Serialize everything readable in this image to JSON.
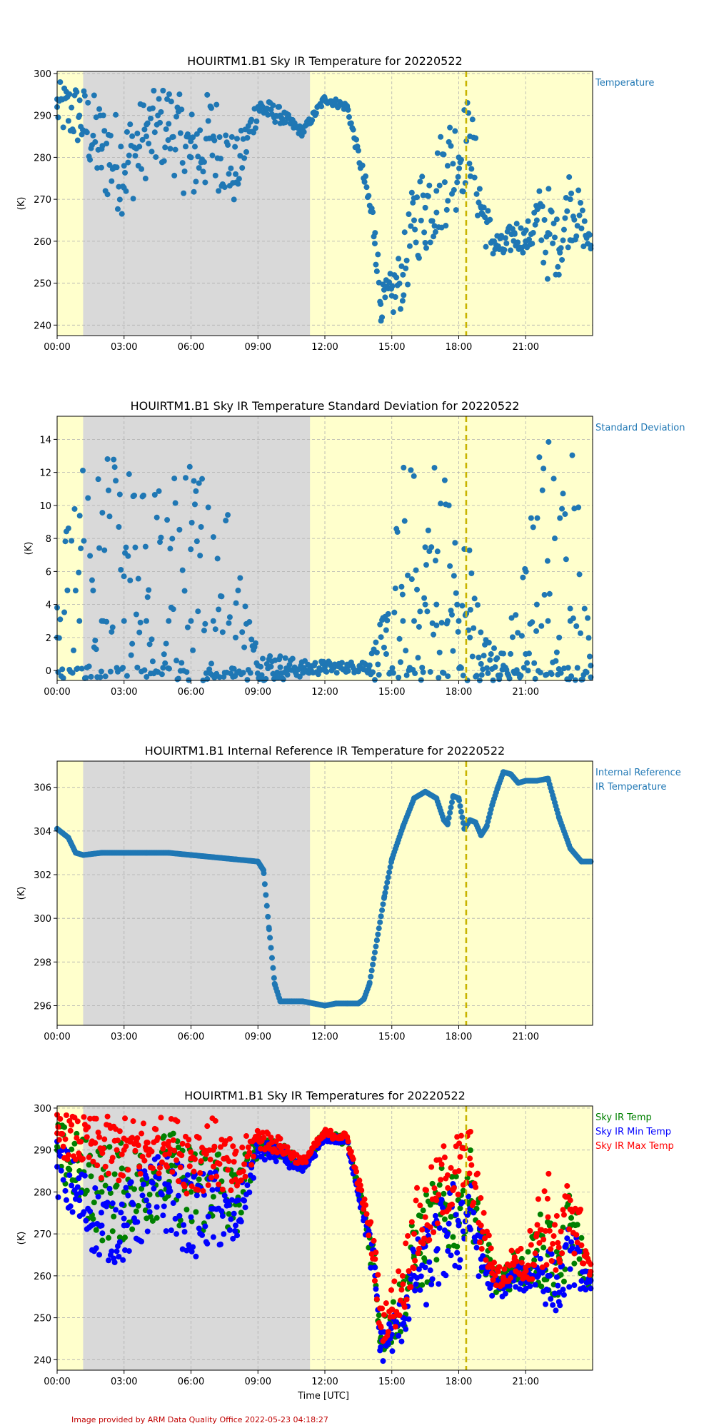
{
  "colors": {
    "night": "#d9d9d9",
    "day": "#ffffcc",
    "single_series": "#1f77b4",
    "legend_label": "#1f77b4",
    "sky_ir_temp": "#008000",
    "sky_ir_min_temp": "#0000ff",
    "sky_ir_max_temp": "#ff0000",
    "marker_line": "#c8b400",
    "grid": "#b0b0b0",
    "footer": "#c00000"
  },
  "xlabel": "Time [UTC]",
  "footer": "Image provided by ARM Data Quality Office 2022-05-23 04:18:27",
  "chart_data": [
    {
      "type": "scatter",
      "title": "HOUIRTM1.B1 Sky IR Temperature for 20220522",
      "ylabel": "(K)",
      "legend": [
        "Temperature"
      ],
      "legend_placement": "right",
      "xlim": [
        "00:00",
        "24:00"
      ],
      "ylim": [
        237.5,
        300.5
      ],
      "grid": true,
      "x_ticks": [
        "00:00",
        "03:00",
        "06:00",
        "09:00",
        "12:00",
        "15:00",
        "18:00",
        "21:00"
      ],
      "y_ticks": [
        240,
        250,
        260,
        270,
        280,
        290,
        300
      ],
      "shaded_regions": [
        {
          "from": "01:10",
          "to": "11:20",
          "label": "night"
        }
      ],
      "marker_time": "18:20",
      "series": [
        {
          "name": "Temperature",
          "x": [
            "00:00",
            "01:00",
            "02:00",
            "03:00",
            "04:00",
            "05:00",
            "06:00",
            "07:00",
            "08:00",
            "09:00",
            "10:00",
            "11:00",
            "12:00",
            "13:00",
            "13:45",
            "14:15",
            "14:30",
            "15:00",
            "15:30",
            "16:00",
            "16:30",
            "17:00",
            "17:30",
            "18:00",
            "18:30",
            "19:00",
            "19:30",
            "20:00",
            "20:30",
            "21:00",
            "21:30",
            "22:00",
            "22:30",
            "23:00",
            "23:55"
          ],
          "values": [
            292,
            290,
            282,
            278,
            285,
            288,
            280,
            285,
            276,
            292,
            290,
            286,
            294,
            292,
            275,
            262,
            245,
            247,
            252,
            265,
            268,
            272,
            278,
            280,
            285,
            268,
            260,
            258,
            262,
            260,
            265,
            262,
            258,
            270,
            259
          ],
          "spread": [
            6,
            8,
            12,
            12,
            10,
            10,
            12,
            12,
            8,
            3,
            2,
            1,
            1,
            1,
            2,
            6,
            4,
            6,
            8,
            10,
            12,
            12,
            14,
            12,
            10,
            8,
            4,
            3,
            4,
            3,
            8,
            12,
            6,
            10,
            2
          ]
        }
      ]
    },
    {
      "type": "scatter",
      "title": "HOUIRTM1.B1 Sky IR Temperature Standard Deviation for 20220522",
      "ylabel": "(K)",
      "legend": [
        "Standard Deviation"
      ],
      "legend_placement": "right",
      "xlim": [
        "00:00",
        "24:00"
      ],
      "ylim": [
        -0.6,
        15.4
      ],
      "grid": true,
      "x_ticks": [
        "00:00",
        "03:00",
        "06:00",
        "09:00",
        "12:00",
        "15:00",
        "18:00",
        "21:00"
      ],
      "y_ticks": [
        0,
        2,
        4,
        6,
        8,
        10,
        12,
        14
      ],
      "shaded_regions": [
        {
          "from": "01:10",
          "to": "11:20",
          "label": "night"
        }
      ],
      "marker_time": "18:20",
      "series": [
        {
          "name": "Standard Deviation",
          "x": [
            "00:00",
            "01:00",
            "02:00",
            "03:00",
            "04:00",
            "05:00",
            "06:00",
            "07:00",
            "08:00",
            "09:00",
            "10:00",
            "11:00",
            "12:00",
            "13:00",
            "14:00",
            "14:45",
            "15:30",
            "16:00",
            "16:30",
            "17:00",
            "17:30",
            "18:00",
            "18:30",
            "19:00",
            "20:00",
            "21:00",
            "21:30",
            "22:00",
            "22:30",
            "23:00",
            "23:55"
          ],
          "values": [
            2,
            3,
            3,
            3,
            3,
            3,
            3,
            3,
            2,
            0.3,
            0.2,
            0.1,
            0.2,
            0.2,
            0.3,
            1,
            3,
            3,
            4,
            4,
            3,
            3,
            2,
            0.4,
            0.3,
            1,
            4,
            3,
            2,
            3,
            0.3
          ],
          "spread": [
            9,
            9,
            10,
            10,
            9,
            9,
            10,
            12,
            6,
            1,
            0.8,
            0.5,
            0.4,
            0.3,
            0.5,
            3,
            10,
            10,
            10,
            10,
            10,
            9,
            8,
            2,
            1,
            6,
            12,
            12,
            8,
            14,
            1
          ]
        }
      ]
    },
    {
      "type": "scatter",
      "title": "HOUIRTM1.B1 Internal Reference IR Temperature for 20220522",
      "ylabel": "(K)",
      "legend": [
        "Internal Reference",
        "IR Temperature"
      ],
      "legend_placement": "right",
      "xlim": [
        "00:00",
        "24:00"
      ],
      "ylim": [
        295.1,
        307.2
      ],
      "grid": true,
      "x_ticks": [
        "00:00",
        "03:00",
        "06:00",
        "09:00",
        "12:00",
        "15:00",
        "18:00",
        "21:00"
      ],
      "y_ticks": [
        296,
        298,
        300,
        302,
        304,
        306
      ],
      "shaded_regions": [
        {
          "from": "01:10",
          "to": "11:20",
          "label": "night"
        }
      ],
      "marker_time": "18:20",
      "series": [
        {
          "name": "Internal Reference IR Temperature",
          "x": [
            "00:00",
            "00:30",
            "00:50",
            "01:10",
            "02:00",
            "03:00",
            "04:00",
            "05:00",
            "06:00",
            "07:00",
            "08:00",
            "09:00",
            "09:15",
            "09:30",
            "09:45",
            "10:00",
            "10:30",
            "11:00",
            "11:30",
            "12:00",
            "12:30",
            "13:00",
            "13:30",
            "13:45",
            "14:00",
            "14:20",
            "14:40",
            "15:00",
            "15:30",
            "16:00",
            "16:30",
            "17:00",
            "17:20",
            "17:30",
            "17:45",
            "18:00",
            "18:15",
            "18:30",
            "18:45",
            "19:00",
            "19:15",
            "19:30",
            "19:45",
            "20:00",
            "20:20",
            "20:40",
            "21:00",
            "21:30",
            "22:00",
            "22:15",
            "22:30",
            "23:00",
            "23:30",
            "23:55"
          ],
          "values": [
            304.1,
            303.7,
            303.0,
            302.9,
            303.0,
            303.0,
            303.0,
            303.0,
            302.9,
            302.8,
            302.7,
            302.6,
            302.2,
            299.5,
            297.0,
            296.2,
            296.2,
            296.2,
            296.1,
            296.0,
            296.1,
            296.1,
            296.1,
            296.3,
            297.0,
            299.0,
            301.0,
            302.7,
            304.2,
            305.5,
            305.8,
            305.5,
            304.5,
            304.3,
            305.6,
            305.5,
            304.1,
            304.5,
            304.4,
            303.8,
            304.2,
            305.2,
            306.0,
            306.7,
            306.6,
            306.2,
            306.3,
            306.3,
            306.4,
            305.5,
            304.6,
            303.2,
            302.6,
            302.6
          ],
          "spread": []
        }
      ]
    },
    {
      "type": "scatter",
      "title": "HOUIRTM1.B1 Sky IR Temperatures for 20220522",
      "ylabel": "(K)",
      "legend": [
        "Sky IR Temp",
        "Sky IR Min Temp",
        "Sky IR Max Temp"
      ],
      "legend_placement": "right",
      "xlim": [
        "00:00",
        "24:00"
      ],
      "ylim": [
        237.5,
        300.5
      ],
      "grid": true,
      "x_ticks": [
        "00:00",
        "03:00",
        "06:00",
        "09:00",
        "12:00",
        "15:00",
        "18:00",
        "21:00"
      ],
      "y_ticks": [
        240,
        250,
        260,
        270,
        280,
        290,
        300
      ],
      "shaded_regions": [
        {
          "from": "01:10",
          "to": "11:20",
          "label": "night"
        }
      ],
      "marker_time": "18:20",
      "series": [
        {
          "name": "Sky IR Temp",
          "x": [
            "00:00",
            "01:00",
            "02:00",
            "03:00",
            "04:00",
            "05:00",
            "06:00",
            "07:00",
            "08:00",
            "09:00",
            "10:00",
            "11:00",
            "12:00",
            "13:00",
            "13:45",
            "14:15",
            "14:30",
            "15:00",
            "15:30",
            "16:00",
            "16:30",
            "17:00",
            "17:30",
            "18:00",
            "18:30",
            "19:00",
            "19:30",
            "20:00",
            "20:30",
            "21:00",
            "21:30",
            "22:00",
            "22:30",
            "23:00",
            "23:55"
          ],
          "values": [
            290,
            285,
            280,
            280,
            282,
            285,
            280,
            283,
            277,
            292,
            290,
            286,
            294,
            292,
            275,
            262,
            245,
            249,
            254,
            265,
            268,
            272,
            276,
            278,
            282,
            268,
            260,
            258,
            262,
            261,
            266,
            265,
            260,
            272,
            259
          ],
          "spread": [
            7,
            9,
            12,
            12,
            10,
            10,
            12,
            12,
            8,
            3,
            2,
            1,
            1,
            1,
            2,
            6,
            4,
            6,
            8,
            10,
            12,
            12,
            12,
            12,
            10,
            8,
            4,
            3,
            4,
            3,
            8,
            12,
            6,
            10,
            2
          ]
        },
        {
          "name": "Sky IR Min Temp",
          "x": [
            "00:00",
            "01:00",
            "02:00",
            "03:00",
            "04:00",
            "05:00",
            "06:00",
            "07:00",
            "08:00",
            "09:00",
            "10:00",
            "11:00",
            "12:00",
            "13:00",
            "13:45",
            "14:15",
            "14:30",
            "15:00",
            "15:30",
            "16:00",
            "16:30",
            "17:00",
            "17:30",
            "18:00",
            "18:30",
            "19:00",
            "19:30",
            "20:00",
            "20:30",
            "21:00",
            "21:30",
            "22:00",
            "22:30",
            "23:00",
            "23:55"
          ],
          "values": [
            286,
            278,
            272,
            272,
            278,
            280,
            274,
            276,
            272,
            290,
            289,
            285,
            293,
            292,
            274,
            260,
            243,
            246,
            250,
            260,
            262,
            266,
            270,
            272,
            276,
            264,
            258,
            257,
            260,
            259,
            262,
            260,
            256,
            266,
            257
          ],
          "spread": [
            7,
            9,
            9,
            9,
            10,
            10,
            10,
            10,
            6,
            3,
            2,
            1,
            1,
            1,
            2,
            6,
            4,
            5,
            6,
            8,
            10,
            10,
            12,
            12,
            10,
            6,
            3,
            2,
            3,
            3,
            6,
            8,
            5,
            8,
            2
          ]
        },
        {
          "name": "Sky IR Max Temp",
          "x": [
            "00:00",
            "01:00",
            "02:00",
            "03:00",
            "04:00",
            "05:00",
            "06:00",
            "07:00",
            "08:00",
            "09:00",
            "10:00",
            "11:00",
            "12:00",
            "13:00",
            "13:45",
            "14:15",
            "14:30",
            "15:00",
            "15:30",
            "16:00",
            "16:30",
            "17:00",
            "17:30",
            "18:00",
            "18:30",
            "19:00",
            "19:30",
            "20:00",
            "20:30",
            "21:00",
            "21:30",
            "22:00",
            "22:30",
            "23:00",
            "23:55"
          ],
          "values": [
            294,
            292,
            290,
            290,
            290,
            292,
            288,
            290,
            283,
            293,
            291,
            287,
            294,
            293,
            277,
            264,
            248,
            252,
            258,
            270,
            274,
            278,
            284,
            285,
            288,
            272,
            262,
            259,
            264,
            262,
            270,
            274,
            264,
            278,
            261
          ],
          "spread": [
            5,
            6,
            8,
            8,
            8,
            6,
            10,
            8,
            8,
            3,
            2,
            1,
            1,
            1,
            2,
            6,
            4,
            6,
            8,
            10,
            10,
            10,
            10,
            10,
            8,
            8,
            4,
            3,
            4,
            4,
            10,
            12,
            8,
            12,
            2
          ]
        }
      ]
    }
  ]
}
